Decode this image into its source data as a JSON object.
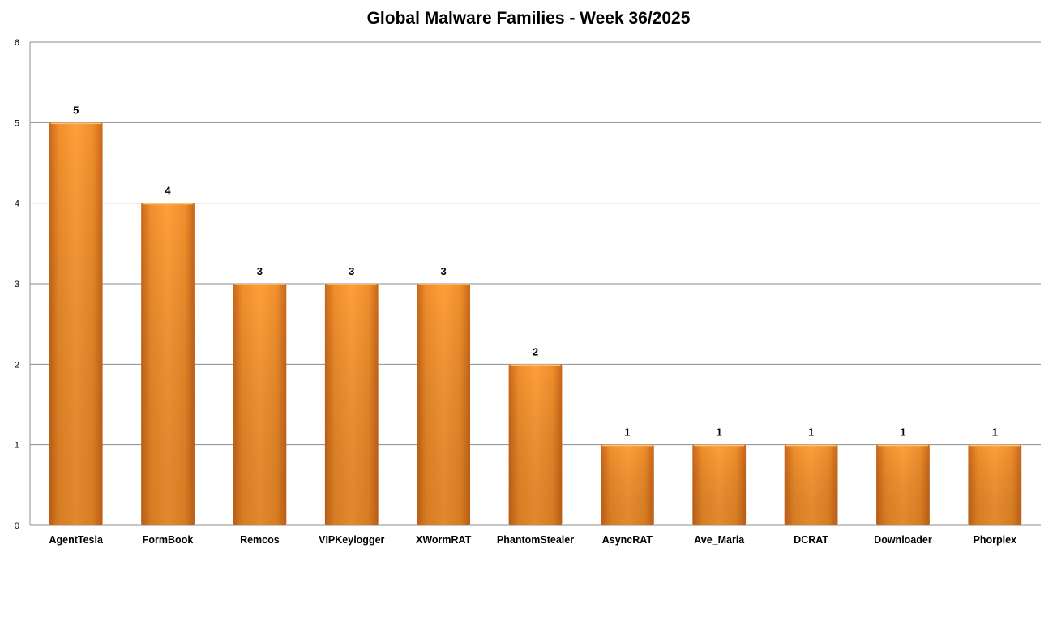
{
  "chart_data": {
    "type": "bar",
    "title": "Global Malware Families - Week 36/2025",
    "xlabel": "",
    "ylabel": "",
    "categories": [
      "AgentTesla",
      "FormBook",
      "Remcos",
      "VIPKeylogger",
      "XWormRAT",
      "PhantomStealer",
      "AsyncRAT",
      "Ave_Maria",
      "DCRAT",
      "Downloader",
      "Phorpiex"
    ],
    "values": [
      5,
      4,
      3,
      3,
      3,
      2,
      1,
      1,
      1,
      1,
      1
    ],
    "ylim": [
      0,
      6
    ],
    "yticks": [
      0,
      1,
      2,
      3,
      4,
      5,
      6
    ],
    "grid": true,
    "legend": "none",
    "data_labels": true,
    "bar_color": "#F0922B"
  }
}
